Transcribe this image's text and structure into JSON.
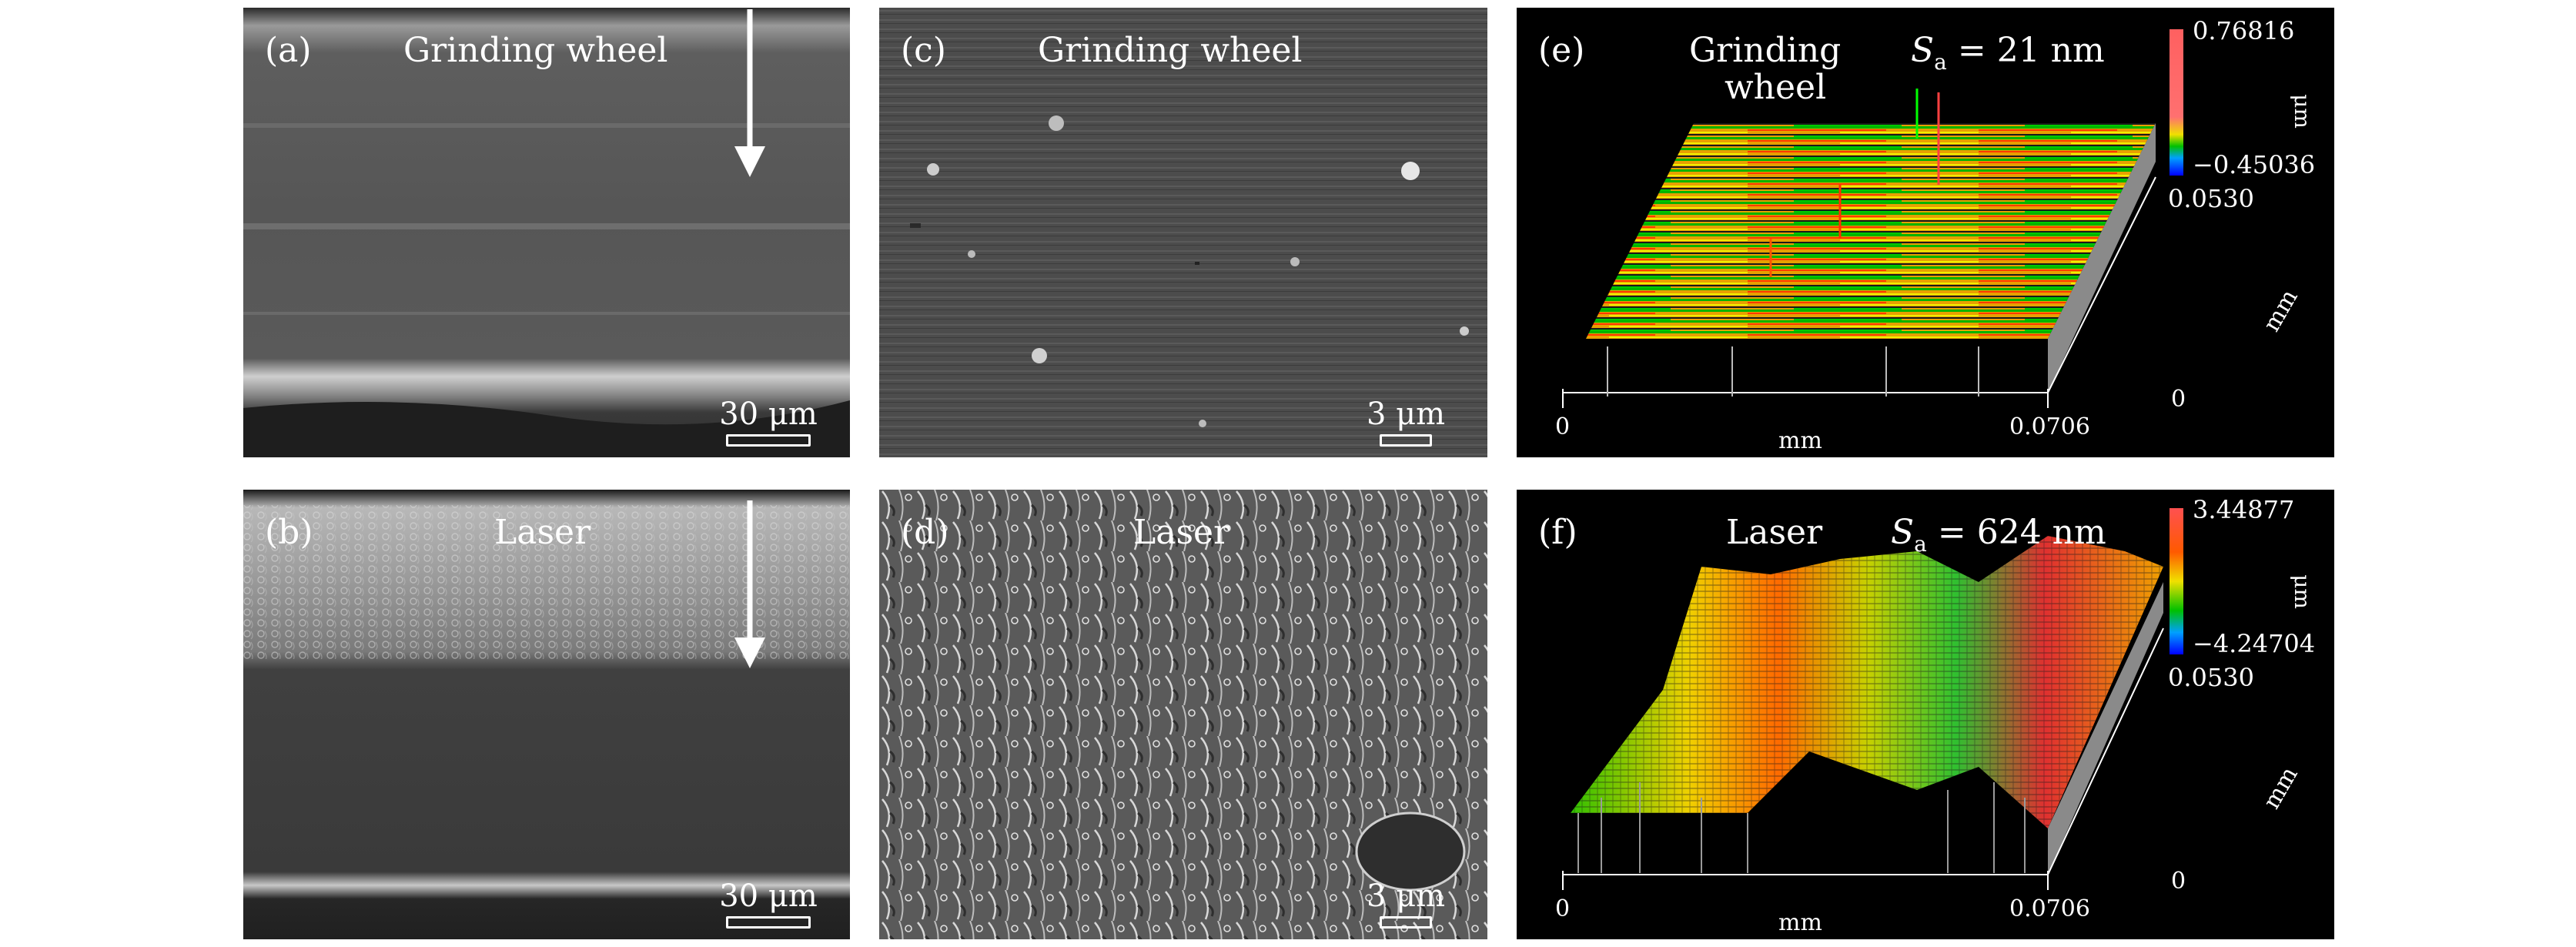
{
  "panels": {
    "a": {
      "label": "(a)",
      "title": "Grinding wheel",
      "scale": "30 μm"
    },
    "b": {
      "label": "(b)",
      "title": "Laser",
      "scale": "30 μm"
    },
    "c": {
      "label": "(c)",
      "title": "Grinding wheel",
      "scale": "3 μm"
    },
    "d": {
      "label": "(d)",
      "title": "Laser",
      "scale": "3 μm"
    },
    "e": {
      "label": "(e)",
      "title_line1": "Grinding",
      "title_line2": "wheel",
      "sa_symbol": "S",
      "sa_sub": "a",
      "sa_value": " = 21 nm",
      "cbar_max": "0.76816",
      "cbar_min": "−0.45036",
      "cbar_unit": "μm",
      "y_max": "0.0530",
      "y_min": "0",
      "y_unit": "mm",
      "x_min": "0",
      "x_max": "0.0706",
      "x_unit": "mm"
    },
    "f": {
      "label": "(f)",
      "title": "Laser",
      "sa_symbol": "S",
      "sa_sub": "a",
      "sa_value": " = 624 nm",
      "cbar_max": "3.44877",
      "cbar_min": "−4.24704",
      "cbar_unit": "μm",
      "y_max": "0.0530",
      "y_min": "0",
      "y_unit": "mm",
      "x_min": "0",
      "x_max": "0.0706",
      "x_unit": "mm"
    }
  },
  "colors": {
    "arrow": "#ffffff",
    "topo_bg": "#000000",
    "sem_bg": "#4a4a4a"
  }
}
